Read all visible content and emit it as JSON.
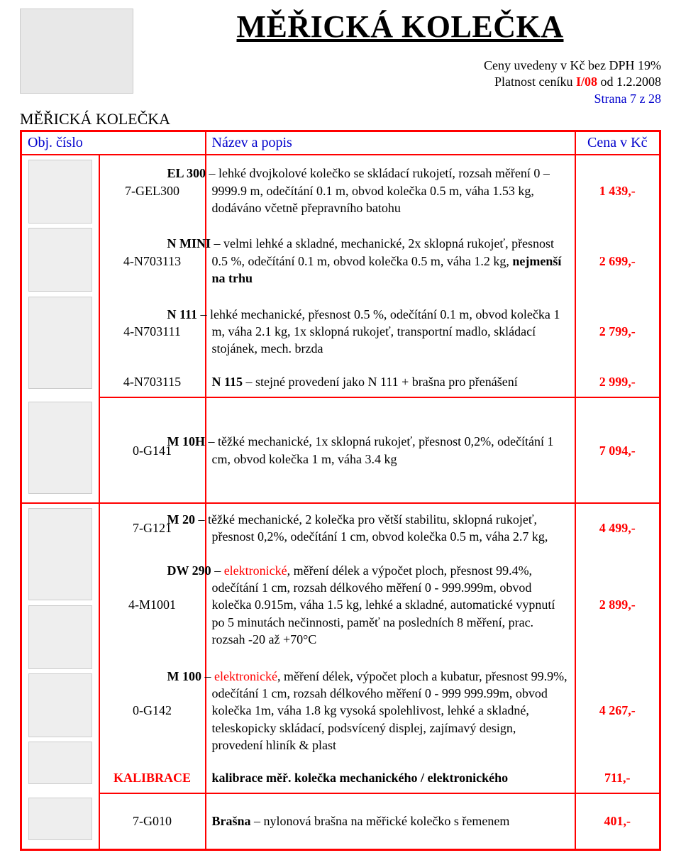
{
  "title": "MĚŘICKÁ  KOLEČKA",
  "meta": {
    "line1_pre": "Ceny uvedeny v Kč bez DPH 19%",
    "line2_pre": "Platnost ceníku ",
    "line2_em": "I/08",
    "line2_post": " od 1.2.2008",
    "page_mark": "Strana 7 z 28"
  },
  "subheader": "MĚŘICKÁ KOLEČKA",
  "headers": {
    "col1": "Obj. číslo",
    "col2": "Název a popis",
    "col3": "Cena v Kč"
  },
  "rows": [
    {
      "code": "7-GEL300",
      "lead_bold": "EL 300",
      "lead_color": "blue",
      "sep": " – ",
      "text": "lehké dvojkolové kolečko se skládací rukojetí, rozsah měření 0 – 9999.9 m, odečítání 0.1 m, obvod kolečka 0.5 m, váha 1.53 kg, dodáváno včetně přepravního batohu",
      "price": "1 439,-"
    },
    {
      "code": "4-N703113",
      "lead_bold": "N MINI",
      "lead_color": "blue",
      "sep": " – ",
      "text": "velmi lehké a skladné, mechanické, 2x sklopná rukojeť, přesnost 0.5 %, odečítání 0.1 m, obvod kolečka 0.5 m, váha 1.2 kg, ",
      "tail_bold": "nejmenší na trhu",
      "price": "2 699,-"
    },
    {
      "code": "4-N703111",
      "lead_bold": "N 111",
      "lead_color": "blue",
      "sep": " – ",
      "text": "lehké mechanické, přesnost 0.5 %, odečítání 0.1 m, obvod kolečka 1 m, váha 2.1 kg, 1x sklopná rukojeť, transportní madlo, skládací stojánek, mech. brzda",
      "price": "2 799,-"
    },
    {
      "code": "4-N703115",
      "lead_bold": "N 115",
      "lead_color": "blue",
      "sep": " – ",
      "text": "stejné provedení jako N 111 + brašna pro přenášení",
      "price": "2 999,-"
    },
    {
      "code": "0-G141",
      "lead_bold": "M 10H",
      "lead_color": "blue",
      "sep": " – ",
      "text": "těžké  mechanické, 1x sklopná rukojeť, přesnost 0,2%, odečítání 1 cm, obvod kolečka 1 m, váha 3.4 kg",
      "price": "7 094,-"
    },
    {
      "code": "7-G121",
      "lead_bold": "M 20",
      "lead_color": "blue",
      "sep": " – ",
      "text": "těžké mechanické, 2 kolečka pro větší stabilitu, sklopná rukojeť, přesnost 0,2%, odečítání 1 cm, obvod kolečka 0.5 m, váha 2.7 kg,",
      "price": "4 499,-"
    },
    {
      "code": "4-M1001",
      "lead_bold": "DW 290",
      "lead_color": "red",
      "sep": " – ",
      "mid": "elektronické",
      "text": ", měření délek a výpočet ploch, přesnost 99.4%,  odečítání 1 cm, rozsah délkového měření 0 - 999.999m, obvod kolečka 0.915m, váha 1.5 kg, lehké a skladné, automatické vypnutí po 5 minutách nečinnosti, paměť na posledních 8 měření, prac. rozsah -20 až +70°C",
      "price": "2 899,-"
    },
    {
      "code": "0-G142",
      "lead_bold": "M 100",
      "lead_color": "red",
      "sep": " – ",
      "mid": "elektronické",
      "text": ", měření délek, výpočet ploch a kubatur, přesnost 99.9%,  odečítání 1 cm, rozsah délkového měření 0 - 999 999.99m, obvod kolečka 1m, váha 1.8 kg vysoká spolehlivost, lehké a skladné, teleskopicky skládací, podsvícený displej, zajímavý design, provedení hliník & plast",
      "price": "4 267,-"
    },
    {
      "code": "KALIBRACE",
      "code_class": "red bold",
      "plain_bold": "kalibrace měř. kolečka mechanického / elektronického",
      "price": "711,-"
    },
    {
      "code": "7-G010",
      "lead_bold": "Brašna",
      "lead_color": "blue",
      "sep": " – ",
      "text": "nylonová brašna na měřické kolečko s řemenem",
      "price": "401,-"
    }
  ]
}
